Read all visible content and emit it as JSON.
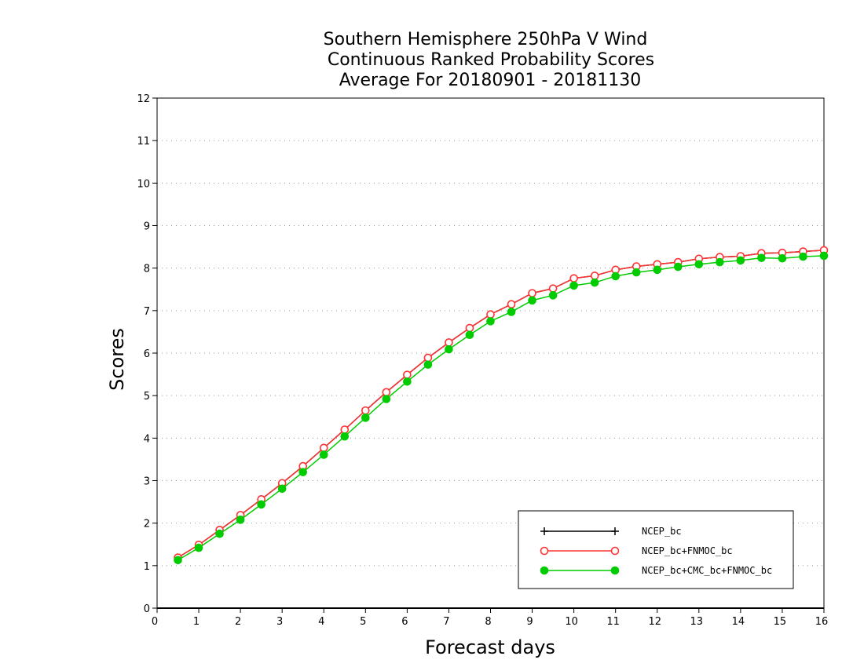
{
  "chart_data": {
    "type": "line",
    "title": [
      "Southern Hemisphere 250hPa V Wind",
      "Continuous Ranked Probability Scores",
      "Average For 20180901 - 20181130"
    ],
    "xlabel": "Forecast days",
    "ylabel": "Scores",
    "xlim": [
      0,
      16
    ],
    "ylim": [
      0,
      12
    ],
    "x_ticks": [
      0,
      1,
      2,
      3,
      4,
      5,
      6,
      7,
      8,
      9,
      10,
      11,
      12,
      13,
      14,
      15,
      16
    ],
    "y_ticks": [
      0,
      1,
      2,
      3,
      4,
      5,
      6,
      7,
      8,
      9,
      10,
      11,
      12
    ],
    "grid": "horizontal dotted",
    "legend_position": "bottom-right",
    "x": [
      0.5,
      1,
      1.5,
      2,
      2.5,
      3,
      3.5,
      4,
      4.5,
      5,
      5.5,
      6,
      6.5,
      7,
      7.5,
      8,
      8.5,
      9,
      9.5,
      10,
      10.5,
      11,
      11.5,
      12,
      12.5,
      13,
      13.5,
      14,
      14.5,
      15,
      15.5,
      16
    ],
    "series": [
      {
        "name": "NCEP_bc",
        "color": "#000000",
        "marker": "plus",
        "values": [
          1.19,
          1.49,
          1.84,
          2.19,
          2.56,
          2.94,
          3.34,
          3.77,
          4.2,
          4.65,
          5.08,
          5.49,
          5.89,
          6.25,
          6.59,
          6.91,
          7.15,
          7.41,
          7.52,
          7.76,
          7.82,
          7.96,
          8.04,
          8.09,
          8.14,
          8.22,
          8.26,
          8.28,
          8.35,
          8.36,
          8.39,
          8.42
        ]
      },
      {
        "name": "NCEP_bc+FNMOC_bc",
        "color": "#ff3333",
        "marker": "open-circle",
        "values": [
          1.19,
          1.49,
          1.84,
          2.19,
          2.56,
          2.94,
          3.34,
          3.77,
          4.2,
          4.65,
          5.08,
          5.49,
          5.89,
          6.25,
          6.59,
          6.91,
          7.15,
          7.41,
          7.52,
          7.76,
          7.82,
          7.96,
          8.04,
          8.09,
          8.14,
          8.22,
          8.26,
          8.28,
          8.35,
          8.36,
          8.39,
          8.42
        ]
      },
      {
        "name": "NCEP_bc+CMC_bc+FNMOC_bc",
        "color": "#00cc00",
        "marker": "filled-circle",
        "values": [
          1.13,
          1.42,
          1.75,
          2.08,
          2.44,
          2.81,
          3.2,
          3.61,
          4.04,
          4.48,
          4.92,
          5.33,
          5.73,
          6.09,
          6.43,
          6.75,
          6.97,
          7.24,
          7.36,
          7.59,
          7.66,
          7.81,
          7.9,
          7.96,
          8.03,
          8.09,
          8.14,
          8.18,
          8.24,
          8.23,
          8.27,
          8.29
        ]
      }
    ]
  }
}
